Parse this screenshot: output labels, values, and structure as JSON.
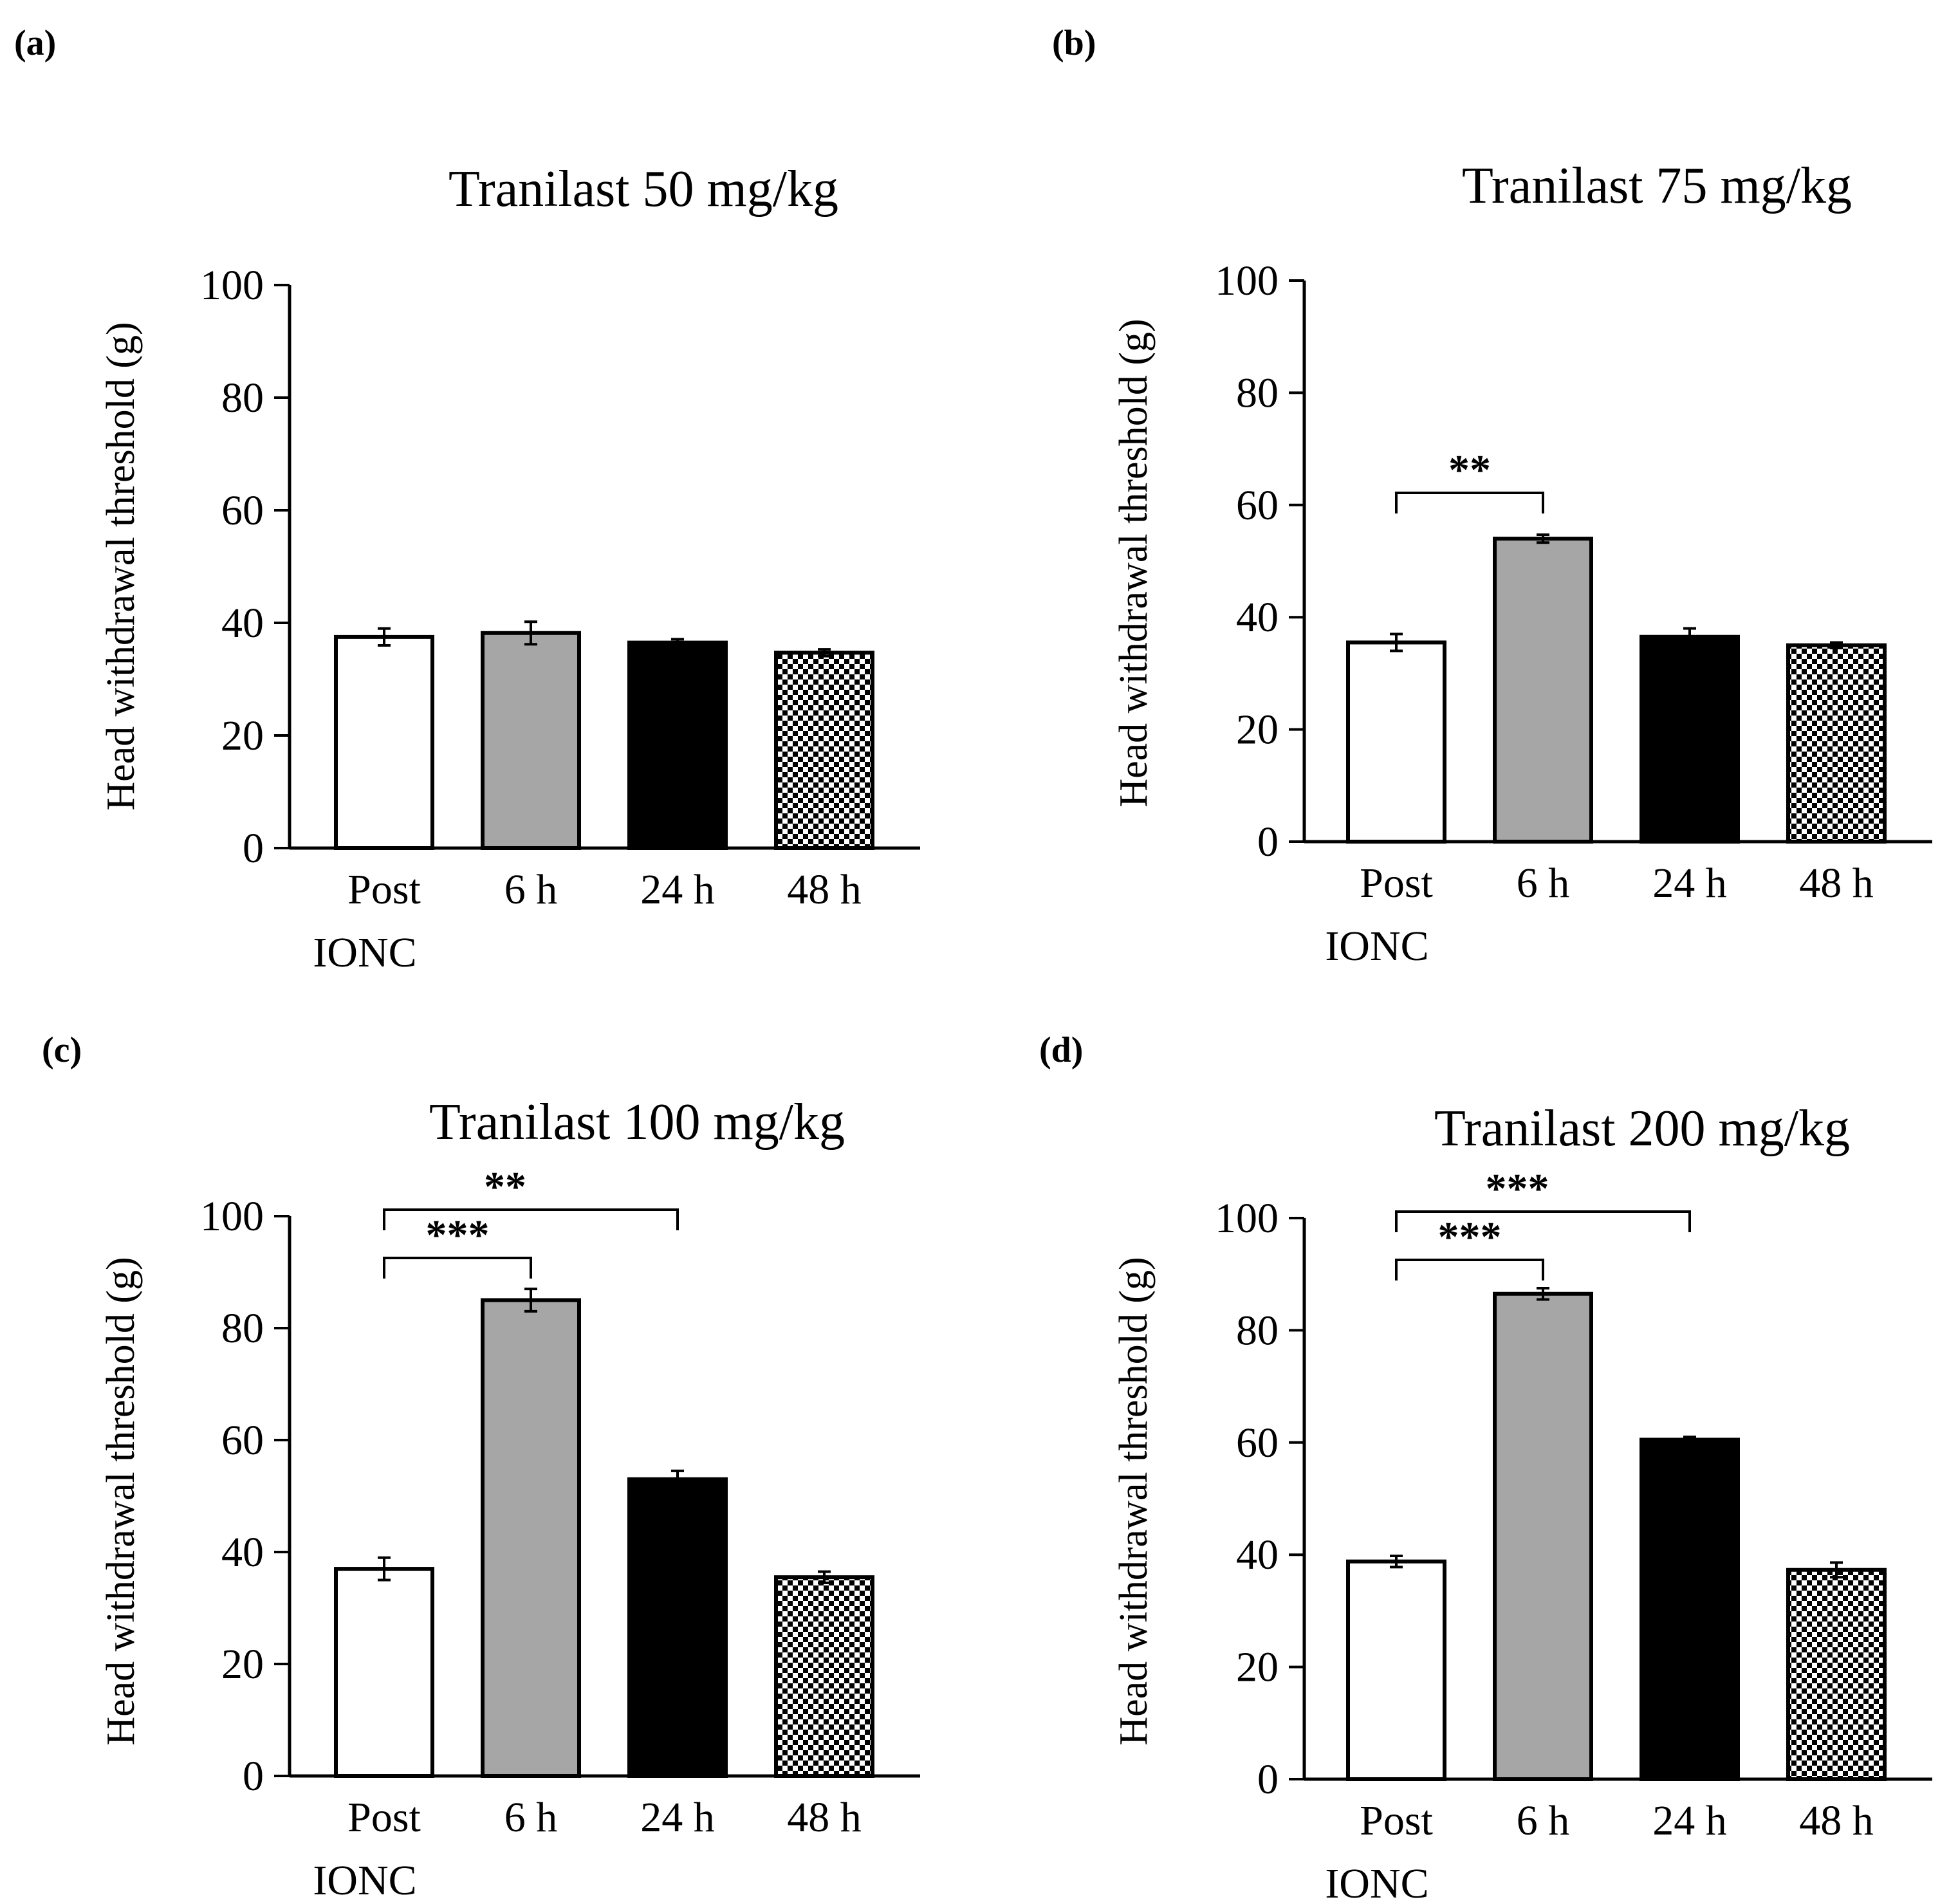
{
  "figure": {
    "colors": {
      "axis": "#000000",
      "bar_outline": "#000000",
      "post_fill": "#ffffff",
      "6h_fill": "#a6a6a6",
      "24h_fill": "#000000",
      "48h_fill": "checkerboard"
    }
  },
  "chart_data": [
    {
      "panel_label": "(a)",
      "type": "bar",
      "title": "Tranilast 50 mg/kg",
      "ylabel": "Head withdrawal threshold (g)",
      "xlabel": "",
      "ylim": [
        0,
        100
      ],
      "yticks": [
        "0",
        "20",
        "40",
        "60",
        "80",
        "100"
      ],
      "categories": [
        "Post",
        "6 h",
        "24 h",
        "48 h"
      ],
      "category_sublabels": [
        "IONC",
        "",
        "",
        ""
      ],
      "values": [
        37.5,
        38.2,
        36.5,
        34.7
      ],
      "errors": [
        1.5,
        2.0,
        0.6,
        0.6
      ],
      "significance": []
    },
    {
      "panel_label": "(b)",
      "type": "bar",
      "title": "Tranilast 75 mg/kg",
      "ylabel": "Head withdrawal threshold (g)",
      "xlabel": "",
      "ylim": [
        0,
        100
      ],
      "yticks": [
        "0",
        "20",
        "40",
        "60",
        "80",
        "100"
      ],
      "categories": [
        "Post",
        "6 h",
        "24 h",
        "48 h"
      ],
      "category_sublabels": [
        "IONC",
        "",
        "",
        ""
      ],
      "values": [
        35.5,
        54.0,
        36.5,
        35.0
      ],
      "errors": [
        1.5,
        0.7,
        1.5,
        0.5
      ],
      "significance": [
        {
          "from": 0,
          "to": 1,
          "label": "**"
        }
      ]
    },
    {
      "panel_label": "(c)",
      "type": "bar",
      "title": "Tranilast 100 mg/kg",
      "ylabel": "Head withdrawal threshold (g)",
      "xlabel": "",
      "ylim": [
        0,
        100
      ],
      "yticks": [
        "0",
        "20",
        "40",
        "60",
        "80",
        "100"
      ],
      "categories": [
        "Post",
        "6 h",
        "24 h",
        "48 h"
      ],
      "category_sublabels": [
        "IONC",
        "",
        "",
        ""
      ],
      "values": [
        37.0,
        85.0,
        53.0,
        35.5
      ],
      "errors": [
        2.0,
        2.0,
        1.5,
        1.0
      ],
      "significance": [
        {
          "from": 0,
          "to": 1,
          "label": "***"
        },
        {
          "from": 0,
          "to": 2,
          "label": "**"
        }
      ]
    },
    {
      "panel_label": "(d)",
      "type": "bar",
      "title": "Tranilast 200 mg/kg",
      "ylabel": "Head withdrawal threshold (g)",
      "xlabel": "",
      "ylim": [
        0,
        100
      ],
      "yticks": [
        "0",
        "20",
        "40",
        "60",
        "80",
        "100"
      ],
      "categories": [
        "Post",
        "6 h",
        "24 h",
        "48 h"
      ],
      "category_sublabels": [
        "IONC",
        "",
        "",
        ""
      ],
      "values": [
        38.8,
        86.5,
        60.5,
        37.3
      ],
      "errors": [
        1.0,
        1.0,
        0.5,
        1.3
      ],
      "significance": [
        {
          "from": 0,
          "to": 1,
          "label": "***"
        },
        {
          "from": 0,
          "to": 2,
          "label": "***"
        }
      ]
    }
  ]
}
